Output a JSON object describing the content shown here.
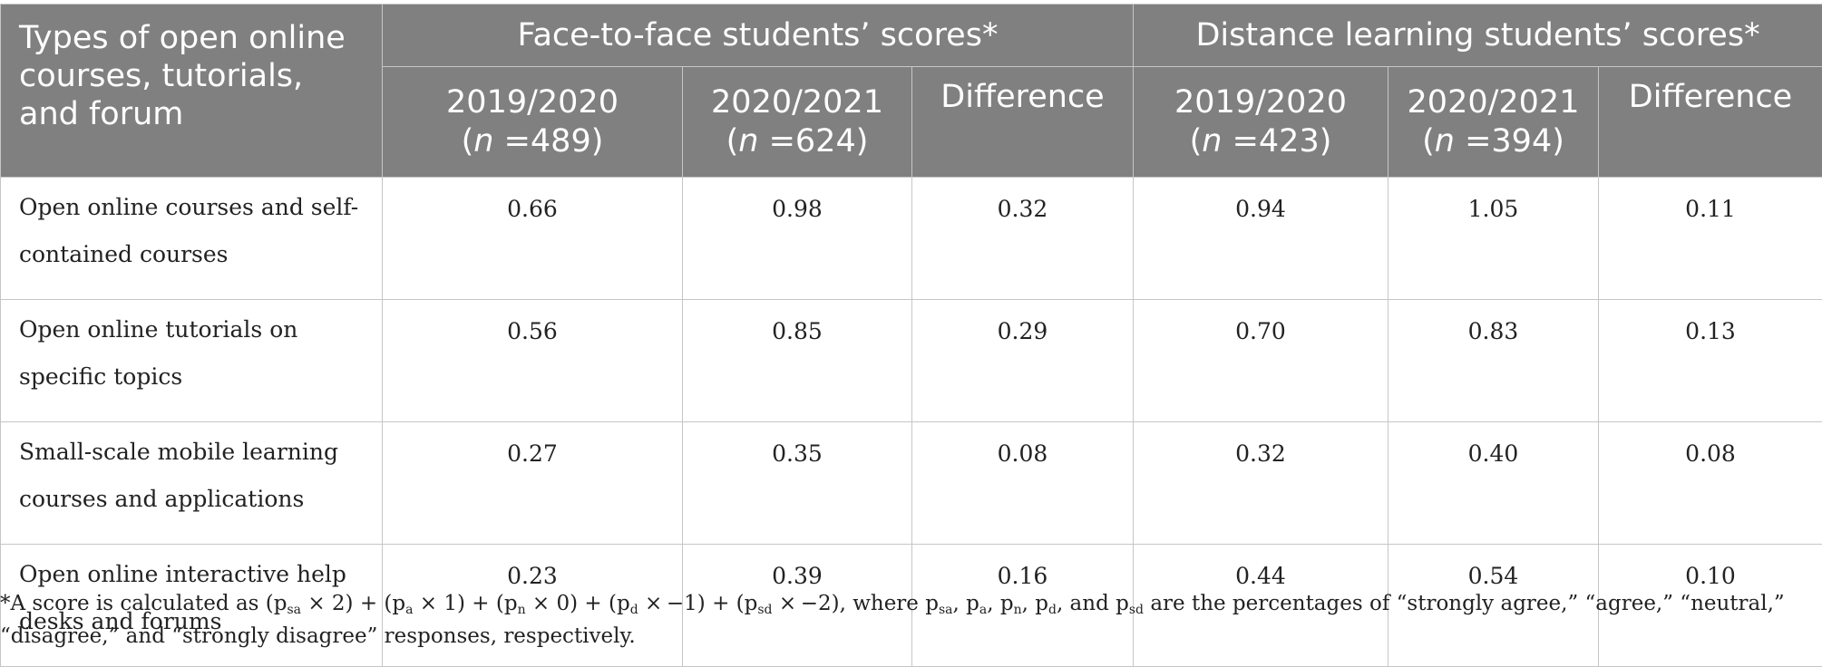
{
  "header": {
    "row_label": "Types of open online courses, tutorials, and forum",
    "group_face": "Face-to-face students’ scores*",
    "group_distance": "Distance learning students’ scores*",
    "f_2019": {
      "year": "2019/2020",
      "n_label": "n",
      "n_value": " =489)"
    },
    "f_2020": {
      "year": "2020/2021",
      "n_label": "n",
      "n_value": " =624)"
    },
    "f_diff": "Difference",
    "d_2019": {
      "year": "2019/2020",
      "n_label": "n",
      "n_value": " =423)"
    },
    "d_2020": {
      "year": "2020/2021",
      "n_label": "n",
      "n_value": " =394)"
    },
    "d_diff": "Difference"
  },
  "rows": [
    {
      "label": "Open online courses and self-contained courses",
      "values": [
        "0.66",
        "0.98",
        "0.32",
        "0.94",
        "1.05",
        "0.11"
      ]
    },
    {
      "label": "Open online tutorials on specific topics",
      "values": [
        "0.56",
        "0.85",
        "0.29",
        "0.70",
        "0.83",
        "0.13"
      ]
    },
    {
      "label": "Small-scale mobile learning courses and applications",
      "values": [
        "0.27",
        "0.35",
        "0.08",
        "0.32",
        "0.40",
        "0.08"
      ]
    },
    {
      "label": "Open online interactive help desks and forums",
      "values": [
        "0.23",
        "0.39",
        "0.16",
        "0.44",
        "0.54",
        "0.10"
      ]
    }
  ],
  "footnote": {
    "star": "*",
    "p": "p",
    "sa": "sa",
    "a": "a",
    "n": "n",
    "d": "d",
    "sd": "sd",
    "lead": "A score is calculated as (",
    "m2": " × 2) + (",
    "m1": " × 1) + (",
    "m0": " × 0) + (",
    "mneg1": " × −1) + (",
    "mneg2": " × −2), where ",
    "c1": ", ",
    "c2": ", ",
    "c3": ", ",
    "and": ", and ",
    "tail": " are the percentages of “strongly agree,” “agree,” “neutral,” “disagree,” and “strongly disagree” responses, respectively."
  },
  "colors": {
    "header_bg": "#7f807f",
    "border": "#c6c6c6",
    "text": "#222222"
  }
}
